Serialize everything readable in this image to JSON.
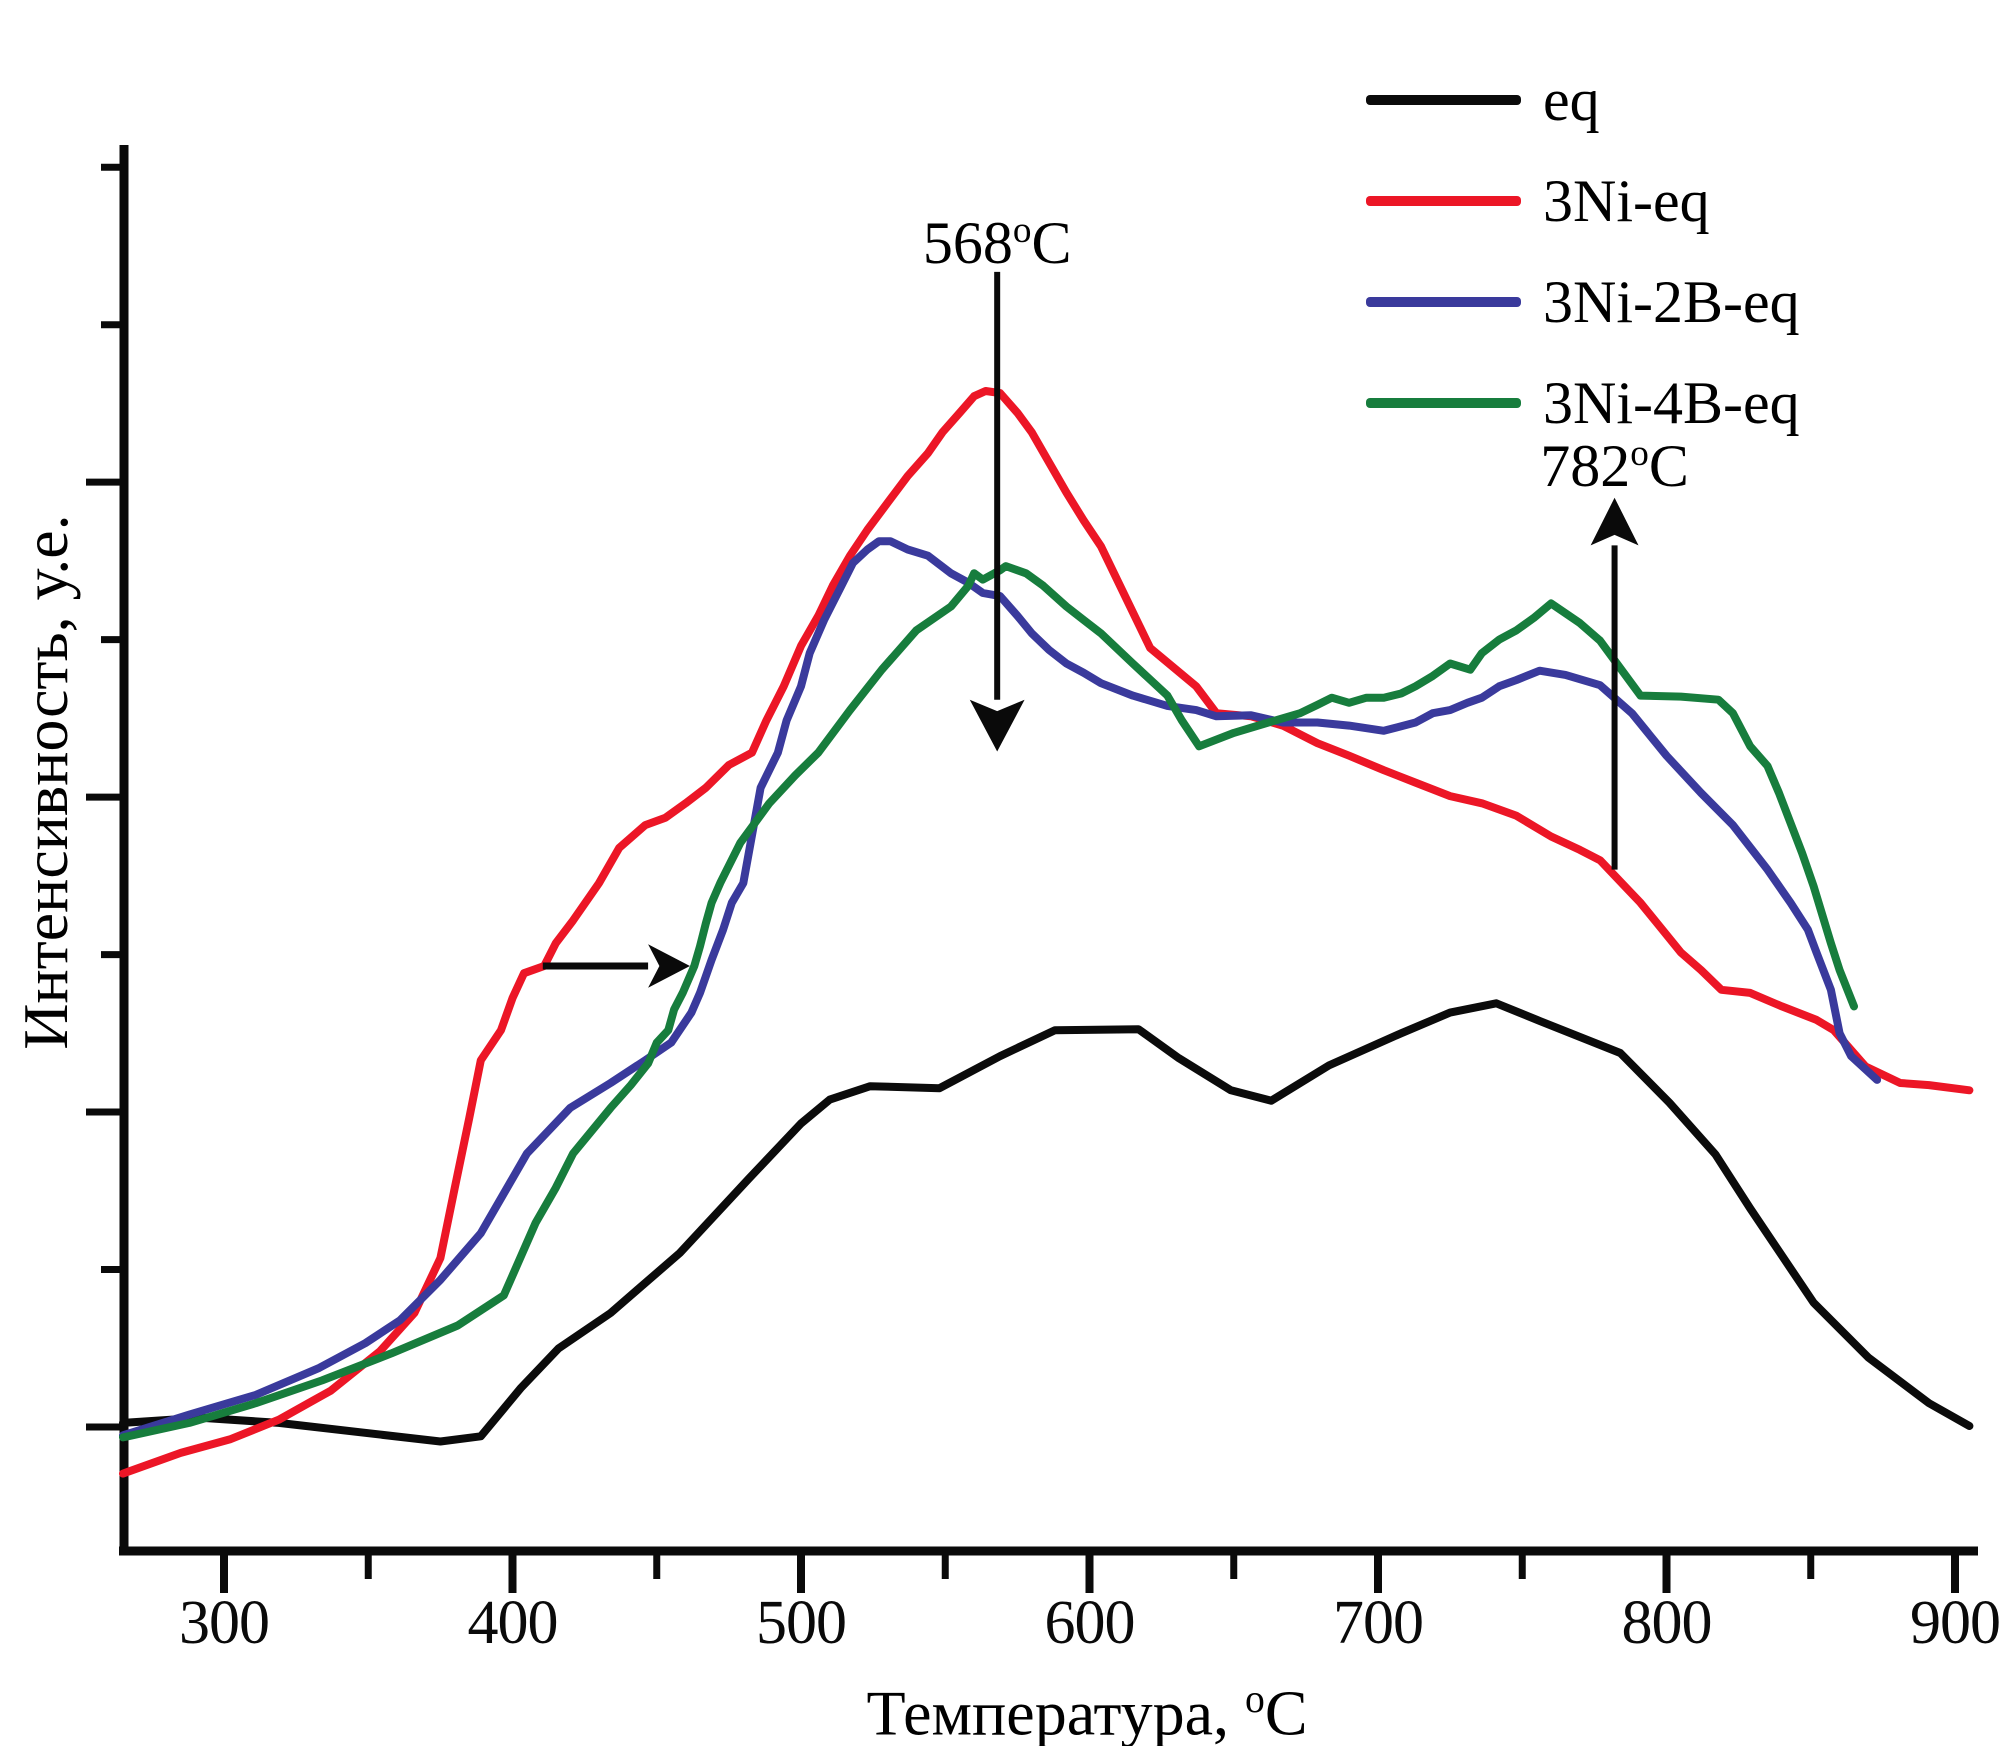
{
  "legend": {
    "items": [
      {
        "label": "eq",
        "color": "#0b0b0b"
      },
      {
        "label": "3Ni-eq",
        "color": "#ec1626"
      },
      {
        "label": "3Ni-2B-eq",
        "color": "#3a3a9c"
      },
      {
        "label": "3Ni-4B-eq",
        "color": "#177d3d"
      }
    ]
  },
  "chart_data": {
    "type": "line",
    "title": "",
    "xlabel": "Температура, °C",
    "xlabel_parts": {
      "text": "Температура,",
      "sup": "o",
      "unit": "C"
    },
    "ylabel": "Интенсивность, у.е.",
    "x_unit": "°C",
    "y_unit": "у.е. (arbitrary units, normalized: 3Ni-eq peak = 100)",
    "xlim": [
      262,
      908
    ],
    "ylim": [
      -12,
      128
    ],
    "grid": false,
    "legend_position": "top-right",
    "x_ticks_major": [
      300,
      400,
      500,
      600,
      700,
      800,
      900
    ],
    "x_tick_labels": [
      "300",
      "400",
      "500",
      "600",
      "700",
      "800",
      "900"
    ],
    "x_ticks_minor": [
      350,
      450,
      550,
      650,
      750,
      850
    ],
    "y_ticks": [
      {
        "i": 0,
        "major": true
      },
      {
        "i": 15.2,
        "major": false
      },
      {
        "i": 30.4,
        "major": true
      },
      {
        "i": 45.6,
        "major": false
      },
      {
        "i": 60.8,
        "major": true
      },
      {
        "i": 76.0,
        "major": false
      },
      {
        "i": 91.2,
        "major": true
      },
      {
        "i": 106.4,
        "major": false
      },
      {
        "i": 121.6,
        "major": false
      }
    ],
    "series": [
      {
        "name": "eq",
        "color": "#0b0b0b",
        "points": [
          [
            265,
            0.4
          ],
          [
            292,
            0.9
          ],
          [
            319,
            0.4
          ],
          [
            347,
            -0.5
          ],
          [
            375,
            -1.4
          ],
          [
            389,
            -0.9
          ],
          [
            403,
            3.8
          ],
          [
            416,
            7.6
          ],
          [
            434,
            11
          ],
          [
            458,
            16.8
          ],
          [
            482,
            24
          ],
          [
            500,
            29.3
          ],
          [
            510,
            31.6
          ],
          [
            524,
            32.9
          ],
          [
            548,
            32.7
          ],
          [
            569,
            35.8
          ],
          [
            588,
            38.3
          ],
          [
            617,
            38.4
          ],
          [
            631,
            35.6
          ],
          [
            649,
            32.5
          ],
          [
            663,
            31.5
          ],
          [
            683,
            34.9
          ],
          [
            708,
            38
          ],
          [
            725,
            40
          ],
          [
            741,
            40.9
          ],
          [
            756,
            39.2
          ],
          [
            784,
            36.1
          ],
          [
            801,
            31.3
          ],
          [
            817,
            26.3
          ],
          [
            829,
            21.1
          ],
          [
            851,
            12
          ],
          [
            870,
            6.7
          ],
          [
            891,
            2.3
          ],
          [
            905,
            0.1
          ]
        ]
      },
      {
        "name": "3Ni-eq",
        "color": "#ec1626",
        "points": [
          [
            265,
            -4.5
          ],
          [
            285,
            -2.5
          ],
          [
            302,
            -1.2
          ],
          [
            319,
            0.7
          ],
          [
            337,
            3.5
          ],
          [
            354,
            7.3
          ],
          [
            366,
            11
          ],
          [
            375,
            16.3
          ],
          [
            380,
            23.1
          ],
          [
            385,
            29.8
          ],
          [
            389,
            35.4
          ],
          [
            396,
            38.3
          ],
          [
            400,
            41.4
          ],
          [
            404,
            43.8
          ],
          [
            411,
            44.5
          ],
          [
            415,
            46.7
          ],
          [
            421,
            48.9
          ],
          [
            427,
            51.3
          ],
          [
            430,
            52.5
          ],
          [
            437,
            55.9
          ],
          [
            446,
            58.1
          ],
          [
            453,
            58.8
          ],
          [
            460,
            60.2
          ],
          [
            467,
            61.7
          ],
          [
            475,
            63.9
          ],
          [
            483,
            65.1
          ],
          [
            488,
            68.2
          ],
          [
            494,
            71.5
          ],
          [
            500,
            75.4
          ],
          [
            506,
            78.3
          ],
          [
            511,
            81.2
          ],
          [
            517,
            84.1
          ],
          [
            523,
            86.6
          ],
          [
            530,
            89.2
          ],
          [
            537,
            91.8
          ],
          [
            544,
            94
          ],
          [
            549,
            96
          ],
          [
            555,
            97.9
          ],
          [
            560,
            99.5
          ],
          [
            564,
            100
          ],
          [
            569,
            99.8
          ],
          [
            575,
            97.9
          ],
          [
            580,
            96
          ],
          [
            586,
            93.1
          ],
          [
            592,
            90.2
          ],
          [
            598,
            87.5
          ],
          [
            604,
            85
          ],
          [
            621,
            75.2
          ],
          [
            637,
            71.5
          ],
          [
            644,
            68.9
          ],
          [
            656,
            68.6
          ],
          [
            667,
            67.7
          ],
          [
            679,
            66
          ],
          [
            690,
            64.8
          ],
          [
            702,
            63.4
          ],
          [
            713,
            62.2
          ],
          [
            725,
            60.9
          ],
          [
            736,
            60.2
          ],
          [
            748,
            59
          ],
          [
            760,
            57
          ],
          [
            770,
            55.7
          ],
          [
            777,
            54.7
          ],
          [
            791,
            50.6
          ],
          [
            805,
            45.8
          ],
          [
            812,
            44.1
          ],
          [
            819,
            42.2
          ],
          [
            829,
            41.9
          ],
          [
            840,
            40.6
          ],
          [
            852,
            39.3
          ],
          [
            858,
            38.3
          ],
          [
            869,
            34.8
          ],
          [
            881,
            33.2
          ],
          [
            891,
            33
          ],
          [
            905,
            32.5
          ]
        ]
      },
      {
        "name": "3Ni-2B-eq",
        "color": "#3a3a9c",
        "points": [
          [
            265,
            -0.8
          ],
          [
            288,
            1.2
          ],
          [
            311,
            3.1
          ],
          [
            333,
            5.7
          ],
          [
            349,
            8.1
          ],
          [
            361,
            10.3
          ],
          [
            375,
            14.2
          ],
          [
            389,
            18.7
          ],
          [
            405,
            26.4
          ],
          [
            420,
            30.8
          ],
          [
            434,
            33.2
          ],
          [
            446,
            35.4
          ],
          [
            455,
            37.1
          ],
          [
            462,
            40
          ],
          [
            465,
            41.9
          ],
          [
            469,
            45.1
          ],
          [
            473,
            48
          ],
          [
            476,
            50.6
          ],
          [
            480,
            52.5
          ],
          [
            486,
            61.7
          ],
          [
            492,
            65.1
          ],
          [
            495,
            68.2
          ],
          [
            500,
            71.5
          ],
          [
            503,
            74.7
          ],
          [
            508,
            77.9
          ],
          [
            514,
            81.2
          ],
          [
            518,
            83.4
          ],
          [
            523,
            84.7
          ],
          [
            527,
            85.5
          ],
          [
            531,
            85.5
          ],
          [
            537,
            84.7
          ],
          [
            544,
            84.1
          ],
          [
            552,
            82.4
          ],
          [
            558,
            81.5
          ],
          [
            563,
            80.5
          ],
          [
            569,
            80.2
          ],
          [
            575,
            78.3
          ],
          [
            580,
            76.6
          ],
          [
            586,
            75
          ],
          [
            592,
            73.7
          ],
          [
            598,
            72.8
          ],
          [
            604,
            71.8
          ],
          [
            615,
            70.6
          ],
          [
            627,
            69.6
          ],
          [
            637,
            69.2
          ],
          [
            644,
            68.6
          ],
          [
            656,
            68.7
          ],
          [
            667,
            68
          ],
          [
            679,
            68
          ],
          [
            690,
            67.7
          ],
          [
            702,
            67.2
          ],
          [
            713,
            68
          ],
          [
            719,
            68.9
          ],
          [
            725,
            69.2
          ],
          [
            731,
            69.9
          ],
          [
            736,
            70.4
          ],
          [
            742,
            71.5
          ],
          [
            748,
            72.1
          ],
          [
            756,
            73
          ],
          [
            765,
            72.6
          ],
          [
            777,
            71.6
          ],
          [
            788,
            68.9
          ],
          [
            800,
            64.8
          ],
          [
            812,
            61.2
          ],
          [
            823,
            58.1
          ],
          [
            835,
            53.8
          ],
          [
            843,
            50.6
          ],
          [
            849,
            48
          ],
          [
            852,
            45.8
          ],
          [
            857,
            42.2
          ],
          [
            860,
            38
          ],
          [
            864,
            35.8
          ],
          [
            873,
            33.5
          ]
        ]
      },
      {
        "name": "3Ni-4B-eq",
        "color": "#177d3d",
        "points": [
          [
            265,
            -1
          ],
          [
            288,
            0.4
          ],
          [
            311,
            2.3
          ],
          [
            334,
            4.5
          ],
          [
            358,
            7.1
          ],
          [
            381,
            9.8
          ],
          [
            397,
            12.7
          ],
          [
            408,
            19.7
          ],
          [
            415,
            23.1
          ],
          [
            421,
            26.4
          ],
          [
            434,
            30.8
          ],
          [
            441,
            33
          ],
          [
            447,
            35.1
          ],
          [
            450,
            37.1
          ],
          [
            454,
            38.3
          ],
          [
            456,
            40.3
          ],
          [
            459,
            41.9
          ],
          [
            463,
            44.5
          ],
          [
            465,
            46.4
          ],
          [
            467,
            48.6
          ],
          [
            469,
            50.6
          ],
          [
            472,
            52.5
          ],
          [
            479,
            56.4
          ],
          [
            489,
            60.2
          ],
          [
            498,
            62.9
          ],
          [
            506,
            65.1
          ],
          [
            517,
            69.2
          ],
          [
            528,
            73.1
          ],
          [
            540,
            76.9
          ],
          [
            552,
            79.2
          ],
          [
            558,
            81.2
          ],
          [
            560,
            82.4
          ],
          [
            563,
            81.8
          ],
          [
            569,
            82.7
          ],
          [
            571,
            83.1
          ],
          [
            578,
            82.4
          ],
          [
            584,
            81.2
          ],
          [
            592,
            79.2
          ],
          [
            598,
            77.9
          ],
          [
            604,
            76.6
          ],
          [
            615,
            73.7
          ],
          [
            627,
            70.6
          ],
          [
            632,
            68.2
          ],
          [
            638,
            65.7
          ],
          [
            650,
            67
          ],
          [
            662,
            68
          ],
          [
            673,
            68.9
          ],
          [
            679,
            69.7
          ],
          [
            684,
            70.4
          ],
          [
            690,
            69.9
          ],
          [
            696,
            70.4
          ],
          [
            702,
            70.4
          ],
          [
            708,
            70.8
          ],
          [
            713,
            71.5
          ],
          [
            719,
            72.5
          ],
          [
            725,
            73.7
          ],
          [
            732,
            73.1
          ],
          [
            736,
            74.7
          ],
          [
            742,
            76
          ],
          [
            748,
            76.9
          ],
          [
            754,
            78.1
          ],
          [
            760,
            79.5
          ],
          [
            770,
            77.6
          ],
          [
            777,
            75.9
          ],
          [
            791,
            70.6
          ],
          [
            805,
            70.5
          ],
          [
            818,
            70.2
          ],
          [
            823,
            68.9
          ],
          [
            829,
            65.7
          ],
          [
            835,
            63.8
          ],
          [
            839,
            61.2
          ],
          [
            847,
            55.4
          ],
          [
            851,
            52.2
          ],
          [
            857,
            46.7
          ],
          [
            860,
            44.1
          ],
          [
            865,
            40.6
          ]
        ]
      }
    ],
    "annotations": [
      {
        "id": "peak-568",
        "kind": "v-arrow",
        "dir": "down",
        "t": 568,
        "label": {
          "value": "568",
          "sup": "o",
          "unit": "C"
        },
        "label_i": 115.4,
        "shaft_from_i": 111.5,
        "shaft_to_i": 70.2,
        "tip_i": 65.2,
        "head_half_width_t": 9.5
      },
      {
        "id": "peak-782",
        "kind": "v-arrow",
        "dir": "up",
        "t": 782,
        "label": {
          "value": "782",
          "sup": "o",
          "unit": "C"
        },
        "label_i": 93.9,
        "shaft_from_i": 53.8,
        "shaft_to_i": 85.1,
        "tip_i": 89.7,
        "head_half_width_t": 8.3
      },
      {
        "id": "shift-arrow",
        "kind": "h-arrow",
        "i": 44.5,
        "t_from": 410.5,
        "t_shaft_to": 447,
        "t_tip": 461.5,
        "head_half_height_i": 2.1
      }
    ]
  }
}
